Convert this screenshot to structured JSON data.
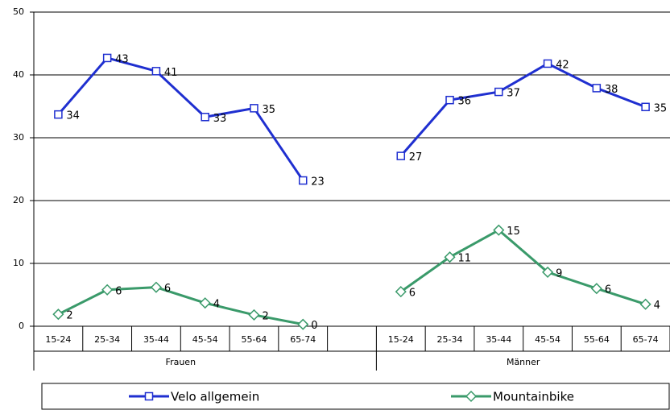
{
  "chart_data": {
    "type": "line",
    "categories": [
      "15-24",
      "25-34",
      "35-44",
      "45-54",
      "55-64",
      "65-74",
      null,
      "15-24",
      "25-34",
      "35-44",
      "45-54",
      "55-64",
      "65-74"
    ],
    "groups": [
      "Frauen",
      "Männer"
    ],
    "series": [
      {
        "name": "Velo allgemein",
        "color": "#1f2fd0",
        "marker": "square",
        "values": [
          33.7,
          42.7,
          40.6,
          33.3,
          34.7,
          23.2,
          null,
          27.1,
          36.0,
          37.3,
          41.8,
          37.9,
          34.9
        ],
        "value_labels": [
          "34",
          "43",
          "41",
          "33",
          "35",
          "23",
          null,
          "27",
          "36",
          "37",
          "42",
          "38",
          "35"
        ]
      },
      {
        "name": "Mountainbike",
        "color": "#3a9a6a",
        "marker": "diamond",
        "values": [
          1.9,
          5.8,
          6.2,
          3.7,
          1.8,
          0.3,
          null,
          5.5,
          11.0,
          15.3,
          8.6,
          6.0,
          3.5
        ],
        "value_labels": [
          "2",
          "6",
          "6",
          "4",
          "2",
          "0",
          null,
          "6",
          "11",
          "15",
          "9",
          "6",
          "4"
        ]
      }
    ],
    "ylim": [
      0,
      50
    ],
    "yticks": [
      0,
      10,
      20,
      30,
      40,
      50
    ],
    "grid": true,
    "legend": "bottom"
  }
}
